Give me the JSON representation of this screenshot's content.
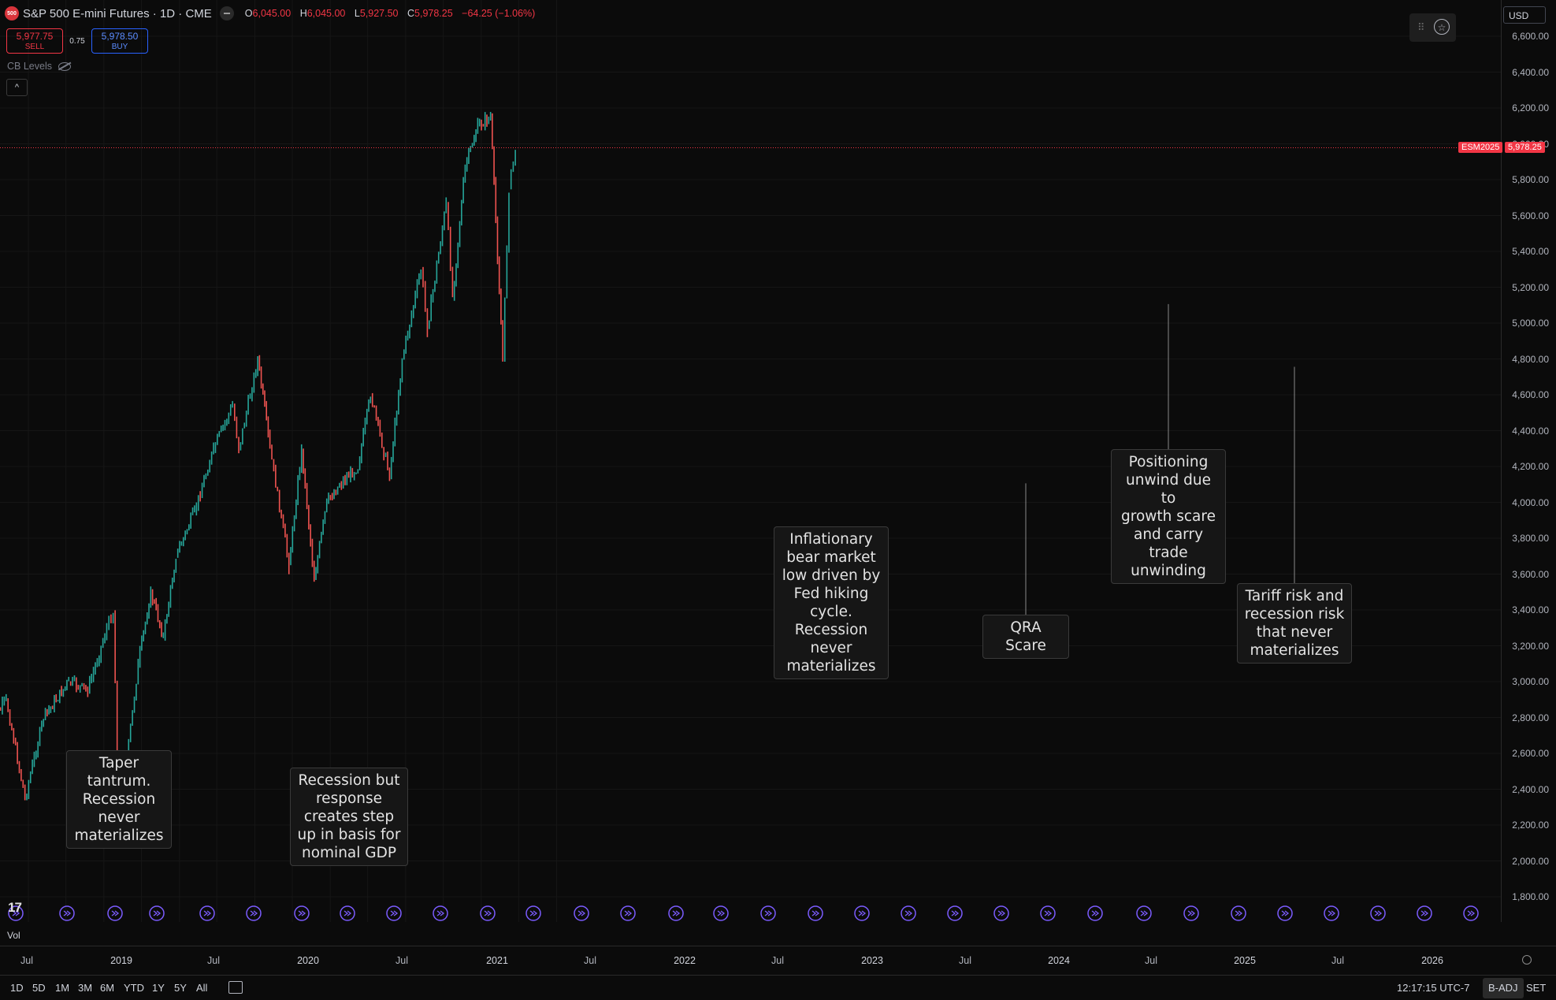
{
  "header": {
    "logo_text": "500",
    "title": "S&P 500 E-mini Futures · 1D · CME",
    "ohlc": {
      "o_label": "O",
      "o": "6,045.00",
      "h_label": "H",
      "h": "6,045.00",
      "l_label": "L",
      "l": "5,927.50",
      "c_label": "C",
      "c": "5,978.25",
      "change": "−64.25 (−1.06%)"
    }
  },
  "trade": {
    "sell_price": "5,977.75",
    "sell_label": "SELL",
    "spread": "0.75",
    "buy_price": "5,978.50",
    "buy_label": "BUY"
  },
  "indicator": {
    "name": "CB Levels"
  },
  "collapse_icon": "^",
  "currency": "USD",
  "colors": {
    "up": "#26a69a",
    "down": "#ef5350",
    "price_line": "#f23645",
    "event_marker": "#7b5cff",
    "background": "#0b0b0b"
  },
  "price_tag": {
    "symbol": "ESM2025",
    "value": "5,978.25"
  },
  "price_axis_labels": [
    "6,600.00",
    "6,400.00",
    "6,200.00",
    "6,000.00",
    "5,800.00",
    "5,600.00",
    "5,400.00",
    "5,200.00",
    "5,000.00",
    "4,800.00",
    "4,600.00",
    "4,400.00",
    "4,200.00",
    "4,000.00",
    "3,800.00",
    "3,600.00",
    "3,400.00",
    "3,200.00",
    "3,000.00",
    "2,800.00",
    "2,600.00",
    "2,400.00",
    "2,200.00",
    "2,000.00",
    "1,800.00"
  ],
  "time_axis_labels": [
    {
      "label": "Jul",
      "year": false
    },
    {
      "label": "2019",
      "year": true
    },
    {
      "label": "Jul",
      "year": false
    },
    {
      "label": "2020",
      "year": true
    },
    {
      "label": "Jul",
      "year": false
    },
    {
      "label": "2021",
      "year": true
    },
    {
      "label": "Jul",
      "year": false
    },
    {
      "label": "2022",
      "year": true
    },
    {
      "label": "Jul",
      "year": false
    },
    {
      "label": "2023",
      "year": true
    },
    {
      "label": "Jul",
      "year": false
    },
    {
      "label": "2024",
      "year": true
    },
    {
      "label": "Jul",
      "year": false
    },
    {
      "label": "2025",
      "year": true
    },
    {
      "label": "Jul",
      "year": false
    },
    {
      "label": "2026",
      "year": true
    }
  ],
  "annotations": [
    {
      "text_lines": [
        "Taper",
        "tantrum.",
        "Recession",
        "never",
        "materializes"
      ]
    },
    {
      "text_lines": [
        "Recession but",
        "response",
        "creates step",
        "up in basis for",
        "nominal GDP"
      ]
    },
    {
      "text_lines": [
        "Inflationary",
        "bear market",
        "low driven by",
        "Fed hiking",
        "cycle.",
        "Recession",
        "never",
        "materializes"
      ]
    },
    {
      "text_lines": [
        "QRA Scare"
      ]
    },
    {
      "text_lines": [
        "Positioning",
        "unwind due to",
        "growth scare",
        "and carry",
        "trade",
        "unwinding"
      ]
    },
    {
      "text_lines": [
        "Tariff risk and",
        "recession risk",
        "that never",
        "materializes"
      ]
    }
  ],
  "chart_data": {
    "type": "line",
    "title": "S&P 500 E-mini Futures · 1D · CME",
    "x": [
      "2018-06",
      "2018-09",
      "2018-12",
      "2019-03",
      "2019-07",
      "2019-10",
      "2020-01",
      "2020-02",
      "2020-03",
      "2020-06",
      "2020-08",
      "2020-10",
      "2020-12",
      "2021-03",
      "2021-06",
      "2021-09",
      "2021-10",
      "2022-01",
      "2022-03",
      "2022-06",
      "2022-08",
      "2022-10",
      "2022-12",
      "2023-02",
      "2023-05",
      "2023-07",
      "2023-10",
      "2023-12",
      "2024-03",
      "2024-04",
      "2024-07",
      "2024-08",
      "2024-10",
      "2024-12",
      "2025-02",
      "2025-04",
      "2025-05",
      "2025-06"
    ],
    "series": [
      {
        "values": [
          2720,
          2900,
          2350,
          2800,
          3000,
          2950,
          3300,
          3390,
          2200,
          3100,
          3500,
          3250,
          3700,
          3950,
          4300,
          4540,
          4300,
          4800,
          4300,
          3650,
          4300,
          3570,
          4000,
          4100,
          4200,
          4600,
          4150,
          4800,
          5300,
          4970,
          5670,
          5150,
          5870,
          6100,
          6150,
          4800,
          5750,
          5978
        ]
      }
    ],
    "ylim": [
      1800,
      6600
    ],
    "events": [
      {
        "date": "2018-12",
        "price": 2350
      },
      {
        "date": "2020-03",
        "price": 2200
      },
      {
        "date": "2022-10",
        "price": 3570
      },
      {
        "date": "2023-10",
        "price": 4150
      },
      {
        "date": "2024-08",
        "price": 5150
      },
      {
        "date": "2025-04",
        "price": 4800
      }
    ],
    "current_price": 5978.25,
    "grid": true
  },
  "vol_label": "Vol",
  "bottombar": {
    "ranges": [
      "1D",
      "5D",
      "1M",
      "3M",
      "6M",
      "YTD",
      "1Y",
      "5Y",
      "All"
    ],
    "clock": "12:17:15 UTC-7",
    "badj": "B-ADJ",
    "sett": "SET"
  }
}
